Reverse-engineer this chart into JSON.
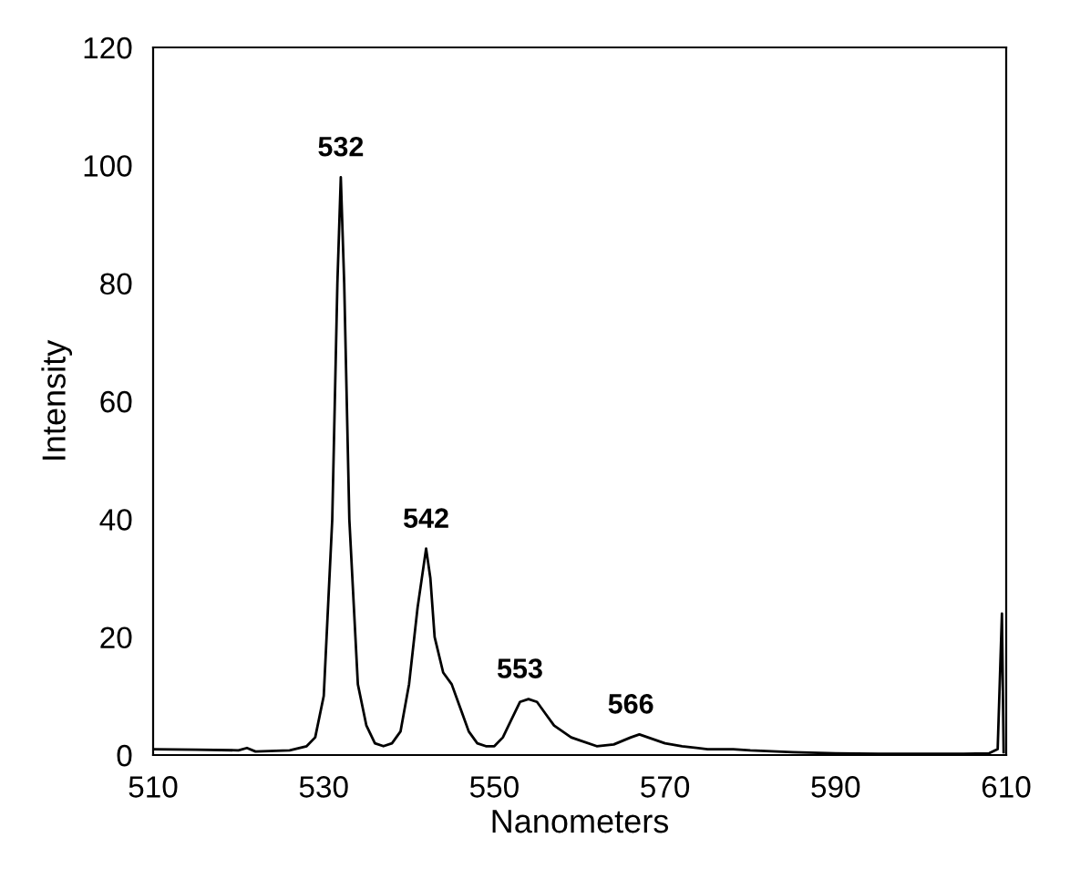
{
  "chart_data": {
    "type": "line",
    "xlabel": "Nanometers",
    "ylabel": "Intensity",
    "xlim": [
      510,
      610
    ],
    "xticks": [
      510,
      530,
      550,
      570,
      590,
      610
    ],
    "ylim": [
      0,
      120
    ],
    "yticks": [
      0,
      20,
      40,
      60,
      80,
      100,
      120
    ],
    "grid": false,
    "marker": "none",
    "line_style": "solid",
    "x": [
      510,
      515,
      520,
      521,
      522,
      526,
      528,
      529,
      530,
      531,
      531.6,
      532,
      532.4,
      533,
      534,
      535,
      536,
      537,
      538,
      539,
      540,
      541,
      542,
      542.5,
      543,
      544,
      545,
      546,
      547,
      548,
      549,
      550,
      551,
      552,
      553,
      554,
      555,
      556,
      557,
      558,
      559,
      560,
      562,
      564,
      566,
      567,
      568,
      570,
      572,
      575,
      578,
      580,
      585,
      590,
      595,
      600,
      605,
      608,
      609,
      609.5,
      609.7
    ],
    "series": [
      {
        "color": "#000000",
        "values": [
          1,
          0.9,
          0.8,
          1.2,
          0.6,
          0.8,
          1.5,
          3,
          10,
          40,
          80,
          98,
          80,
          40,
          12,
          5,
          2,
          1.5,
          2,
          4,
          12,
          25,
          35,
          30,
          20,
          14,
          12,
          8,
          4,
          2,
          1.5,
          1.5,
          3,
          6,
          9,
          9.5,
          9,
          7,
          5,
          4,
          3,
          2.5,
          1.5,
          1.8,
          3,
          3.5,
          3,
          2,
          1.5,
          1,
          1,
          0.8,
          0.5,
          0.3,
          0.2,
          0.2,
          0.2,
          0.3,
          1,
          24,
          0.5
        ]
      }
    ],
    "annotations": [
      {
        "text": "532",
        "x": 532,
        "y": 98
      },
      {
        "text": "542",
        "x": 542,
        "y": 35
      },
      {
        "text": "553",
        "x": 553,
        "y": 9.5
      },
      {
        "text": "566",
        "x": 566,
        "y": 3.5
      }
    ]
  }
}
